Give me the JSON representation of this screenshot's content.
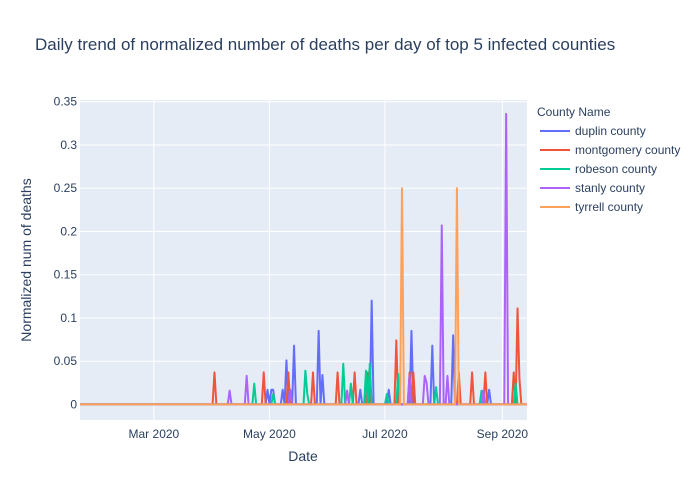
{
  "chart_data": {
    "type": "line",
    "title": "Daily trend of normalized number of deaths per day of top 5 infected counties",
    "xlabel": "Date",
    "ylabel": "Normalized num of deaths",
    "xlim": [
      "2020-01-22",
      "2020-09-14"
    ],
    "ylim": [
      -0.018,
      0.352
    ],
    "x_ticks": [
      {
        "date": "2020-03-01",
        "label": "Mar 2020"
      },
      {
        "date": "2020-05-01",
        "label": "May 2020"
      },
      {
        "date": "2020-07-01",
        "label": "Jul 2020"
      },
      {
        "date": "2020-09-01",
        "label": "Sep 2020"
      }
    ],
    "y_ticks": [
      {
        "value": 0,
        "label": "0"
      },
      {
        "value": 0.05,
        "label": "0.05"
      },
      {
        "value": 0.1,
        "label": "0.1"
      },
      {
        "value": 0.15,
        "label": "0.15"
      },
      {
        "value": 0.2,
        "label": "0.2"
      },
      {
        "value": 0.25,
        "label": "0.25"
      },
      {
        "value": 0.3,
        "label": "0.3"
      },
      {
        "value": 0.35,
        "label": "0.35"
      }
    ],
    "grid": true,
    "legend": {
      "title": "County Name",
      "position": "right"
    },
    "series": [
      {
        "name": "duplin county",
        "color": "#636efa",
        "points": [
          [
            "2020-01-22",
            0
          ],
          [
            "2020-04-29",
            0
          ],
          [
            "2020-04-30",
            0.017
          ],
          [
            "2020-05-01",
            0
          ],
          [
            "2020-05-02",
            0.017
          ],
          [
            "2020-05-03",
            0.017
          ],
          [
            "2020-05-04",
            0
          ],
          [
            "2020-05-07",
            0
          ],
          [
            "2020-05-08",
            0.017
          ],
          [
            "2020-05-09",
            0
          ],
          [
            "2020-05-10",
            0.051
          ],
          [
            "2020-05-11",
            0
          ],
          [
            "2020-05-12",
            0.017
          ],
          [
            "2020-05-13",
            0
          ],
          [
            "2020-05-14",
            0.068
          ],
          [
            "2020-05-15",
            0
          ],
          [
            "2020-05-26",
            0
          ],
          [
            "2020-05-27",
            0.085
          ],
          [
            "2020-05-28",
            0
          ],
          [
            "2020-05-29",
            0.034
          ],
          [
            "2020-05-30",
            0
          ],
          [
            "2020-06-17",
            0
          ],
          [
            "2020-06-18",
            0.017
          ],
          [
            "2020-06-19",
            0
          ],
          [
            "2020-06-23",
            0
          ],
          [
            "2020-06-24",
            0.12
          ],
          [
            "2020-06-25",
            0
          ],
          [
            "2020-07-02",
            0
          ],
          [
            "2020-07-03",
            0.017
          ],
          [
            "2020-07-04",
            0
          ],
          [
            "2020-07-14",
            0
          ],
          [
            "2020-07-15",
            0.085
          ],
          [
            "2020-07-16",
            0
          ],
          [
            "2020-07-25",
            0
          ],
          [
            "2020-07-26",
            0.068
          ],
          [
            "2020-07-27",
            0
          ],
          [
            "2020-08-05",
            0
          ],
          [
            "2020-08-06",
            0.08
          ],
          [
            "2020-08-07",
            0
          ],
          [
            "2020-08-24",
            0
          ],
          [
            "2020-08-25",
            0.017
          ],
          [
            "2020-08-26",
            0
          ],
          [
            "2020-09-14",
            0
          ]
        ]
      },
      {
        "name": "montgomery county",
        "color": "#EF553B",
        "points": [
          [
            "2020-01-22",
            0
          ],
          [
            "2020-04-01",
            0
          ],
          [
            "2020-04-02",
            0.037
          ],
          [
            "2020-04-03",
            0
          ],
          [
            "2020-04-27",
            0
          ],
          [
            "2020-04-28",
            0.037
          ],
          [
            "2020-04-29",
            0
          ],
          [
            "2020-05-10",
            0
          ],
          [
            "2020-05-11",
            0.037
          ],
          [
            "2020-05-12",
            0
          ],
          [
            "2020-05-23",
            0
          ],
          [
            "2020-05-24",
            0.037
          ],
          [
            "2020-05-25",
            0
          ],
          [
            "2020-06-05",
            0
          ],
          [
            "2020-06-06",
            0.037
          ],
          [
            "2020-06-07",
            0
          ],
          [
            "2020-06-14",
            0
          ],
          [
            "2020-06-15",
            0.037
          ],
          [
            "2020-06-16",
            0
          ],
          [
            "2020-06-21",
            0
          ],
          [
            "2020-06-22",
            0.037
          ],
          [
            "2020-06-23",
            0
          ],
          [
            "2020-07-06",
            0
          ],
          [
            "2020-07-07",
            0.074
          ],
          [
            "2020-07-08",
            0
          ],
          [
            "2020-07-13",
            0
          ],
          [
            "2020-07-14",
            0.037
          ],
          [
            "2020-07-15",
            0
          ],
          [
            "2020-07-16",
            0.037
          ],
          [
            "2020-07-17",
            0
          ],
          [
            "2020-08-08",
            0
          ],
          [
            "2020-08-09",
            0.037
          ],
          [
            "2020-08-10",
            0
          ],
          [
            "2020-08-15",
            0
          ],
          [
            "2020-08-16",
            0.037
          ],
          [
            "2020-08-17",
            0
          ],
          [
            "2020-08-22",
            0
          ],
          [
            "2020-08-23",
            0.037
          ],
          [
            "2020-08-24",
            0
          ],
          [
            "2020-09-06",
            0
          ],
          [
            "2020-09-07",
            0.037
          ],
          [
            "2020-09-08",
            0
          ],
          [
            "2020-09-09",
            0.111
          ],
          [
            "2020-09-10",
            0.03
          ],
          [
            "2020-09-11",
            0
          ],
          [
            "2020-09-14",
            0
          ]
        ]
      },
      {
        "name": "robeson county",
        "color": "#00cc96",
        "points": [
          [
            "2020-01-22",
            0
          ],
          [
            "2020-04-22",
            0
          ],
          [
            "2020-04-23",
            0.024
          ],
          [
            "2020-04-24",
            0
          ],
          [
            "2020-05-02",
            0
          ],
          [
            "2020-05-03",
            0.012
          ],
          [
            "2020-05-04",
            0
          ],
          [
            "2020-05-19",
            0
          ],
          [
            "2020-05-20",
            0.039
          ],
          [
            "2020-05-21",
            0.012
          ],
          [
            "2020-05-22",
            0
          ],
          [
            "2020-06-08",
            0
          ],
          [
            "2020-06-09",
            0.047
          ],
          [
            "2020-06-10",
            0
          ],
          [
            "2020-06-12",
            0
          ],
          [
            "2020-06-13",
            0.024
          ],
          [
            "2020-06-14",
            0
          ],
          [
            "2020-06-20",
            0
          ],
          [
            "2020-06-21",
            0.039
          ],
          [
            "2020-06-22",
            0
          ],
          [
            "2020-06-23",
            0.047
          ],
          [
            "2020-06-24",
            0
          ],
          [
            "2020-07-01",
            0
          ],
          [
            "2020-07-02",
            0.012
          ],
          [
            "2020-07-03",
            0
          ],
          [
            "2020-07-07",
            0
          ],
          [
            "2020-07-08",
            0.035
          ],
          [
            "2020-07-09",
            0
          ],
          [
            "2020-07-13",
            0
          ],
          [
            "2020-07-14",
            0.012
          ],
          [
            "2020-07-15",
            0
          ],
          [
            "2020-07-27",
            0
          ],
          [
            "2020-07-28",
            0.02
          ],
          [
            "2020-07-29",
            0
          ],
          [
            "2020-08-20",
            0
          ],
          [
            "2020-08-21",
            0.016
          ],
          [
            "2020-08-22",
            0
          ],
          [
            "2020-09-07",
            0
          ],
          [
            "2020-09-08",
            0.024
          ],
          [
            "2020-09-09",
            0
          ],
          [
            "2020-09-14",
            0
          ]
        ]
      },
      {
        "name": "stanly county",
        "color": "#ab63fa",
        "points": [
          [
            "2020-01-22",
            0
          ],
          [
            "2020-04-09",
            0
          ],
          [
            "2020-04-10",
            0.016
          ],
          [
            "2020-04-11",
            0
          ],
          [
            "2020-04-18",
            0
          ],
          [
            "2020-04-19",
            0.033
          ],
          [
            "2020-04-20",
            0
          ],
          [
            "2020-05-11",
            0
          ],
          [
            "2020-05-12",
            0.016
          ],
          [
            "2020-05-13",
            0
          ],
          [
            "2020-06-10",
            0
          ],
          [
            "2020-06-11",
            0.016
          ],
          [
            "2020-06-12",
            0
          ],
          [
            "2020-07-13",
            0
          ],
          [
            "2020-07-14",
            0.033
          ],
          [
            "2020-07-15",
            0
          ],
          [
            "2020-07-21",
            0
          ],
          [
            "2020-07-22",
            0.033
          ],
          [
            "2020-07-23",
            0.025
          ],
          [
            "2020-07-24",
            0
          ],
          [
            "2020-07-30",
            0
          ],
          [
            "2020-07-31",
            0.207
          ],
          [
            "2020-08-01",
            0
          ],
          [
            "2020-08-02",
            0
          ],
          [
            "2020-08-03",
            0.033
          ],
          [
            "2020-08-04",
            0
          ],
          [
            "2020-08-21",
            0
          ],
          [
            "2020-08-22",
            0.016
          ],
          [
            "2020-08-23",
            0
          ],
          [
            "2020-09-02",
            0
          ],
          [
            "2020-09-03",
            0.336
          ],
          [
            "2020-09-04",
            0
          ],
          [
            "2020-09-14",
            0
          ]
        ]
      },
      {
        "name": "tyrrell county",
        "color": "#FFA15A",
        "points": [
          [
            "2020-01-22",
            0
          ],
          [
            "2020-07-09",
            0
          ],
          [
            "2020-07-10",
            0.25
          ],
          [
            "2020-07-11",
            0
          ],
          [
            "2020-08-07",
            0
          ],
          [
            "2020-08-08",
            0.25
          ],
          [
            "2020-08-09",
            0
          ],
          [
            "2020-09-14",
            0
          ]
        ]
      }
    ]
  }
}
